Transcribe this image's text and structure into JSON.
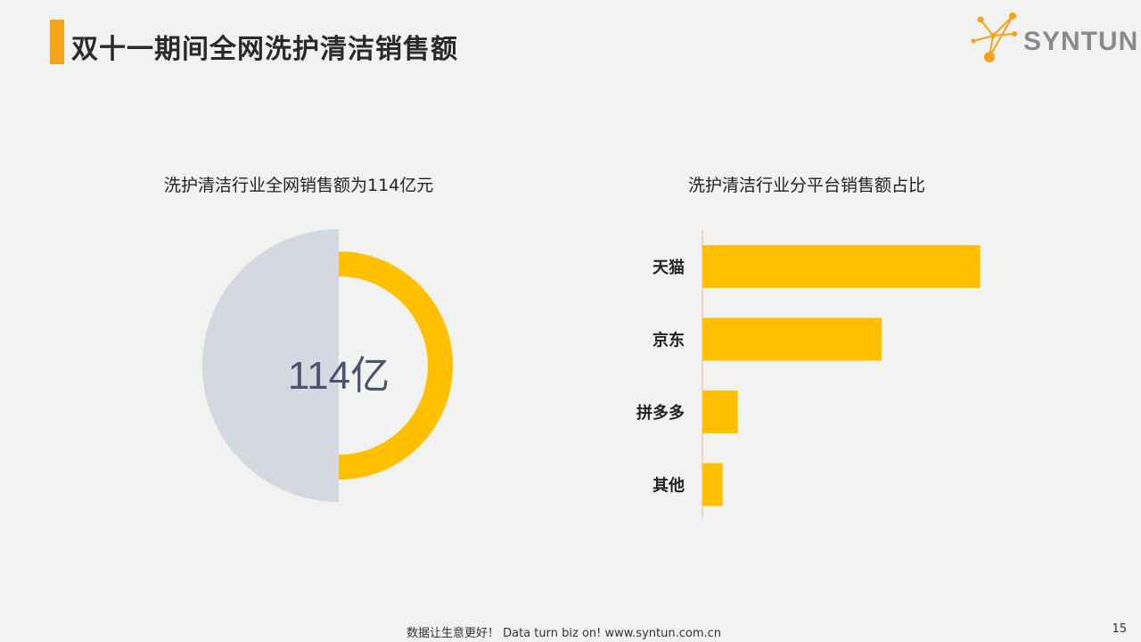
{
  "header": {
    "title": "双十一期间全网洗护清洁销售额",
    "logo_text": "SYNTUN"
  },
  "colors": {
    "accent": "#f7a21b",
    "bar": "#ffc000",
    "donut_ring": "#ffc000",
    "donut_half": "#d5d8e0",
    "axis_line": "#e8b4b4"
  },
  "chart_data": [
    {
      "type": "pie",
      "title": "洗护清洁行业全网销售额为114亿元",
      "center_label": "114亿"
    },
    {
      "type": "bar",
      "orientation": "horizontal",
      "title": "洗护清洁行业分平台销售额占比",
      "categories": [
        "天猫",
        "京东",
        "拼多多",
        "其他"
      ],
      "values": [
        0.55,
        0.355,
        0.07,
        0.04
      ],
      "xlim": [
        0,
        0.6
      ],
      "grid": false
    }
  ],
  "footer": {
    "text": "数据让生意更好！ Data turn biz on!  www.syntun.com.cn",
    "page_number": "15"
  }
}
